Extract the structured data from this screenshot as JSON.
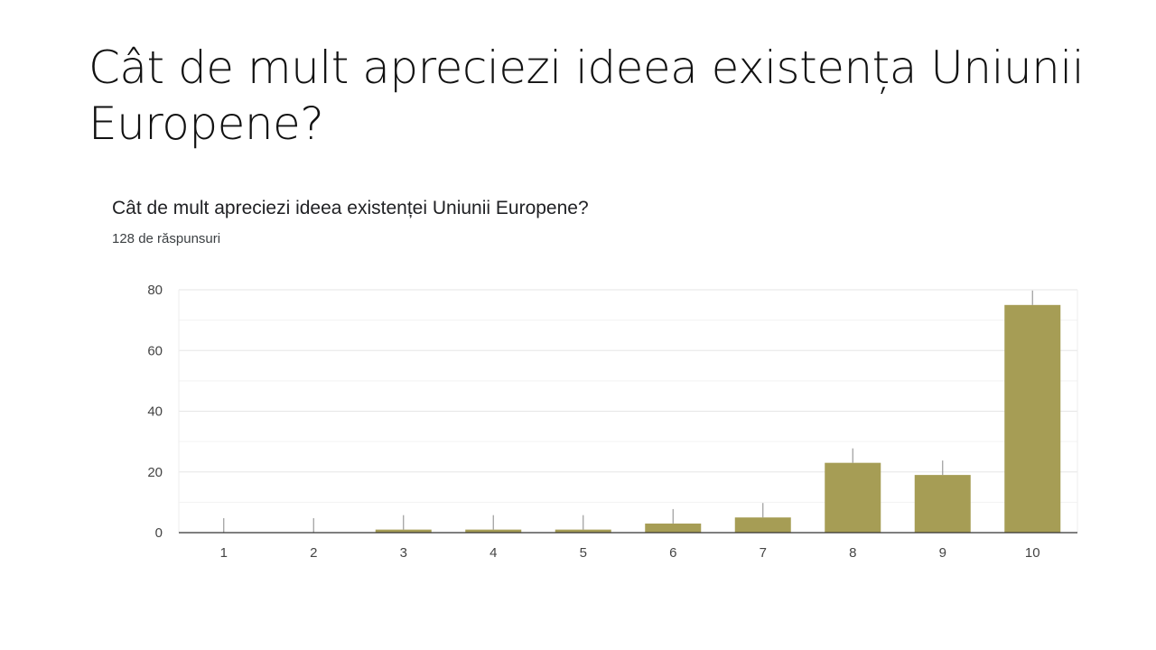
{
  "slide": {
    "title": "Cât de mult apreciezi ideea existența Uniunii Europene?"
  },
  "chart_data": {
    "type": "bar",
    "title": "Cât de mult apreciezi ideea existenței Uniunii Europene?",
    "subtitle": "128 de răspunsuri",
    "categories": [
      "1",
      "2",
      "3",
      "4",
      "5",
      "6",
      "7",
      "8",
      "9",
      "10"
    ],
    "values": [
      0,
      0,
      1,
      1,
      1,
      3,
      5,
      23,
      19,
      75
    ],
    "ylim": [
      0,
      80
    ],
    "yticks": [
      0,
      20,
      40,
      60,
      80
    ],
    "xlabel": "",
    "ylabel": "",
    "grid": true,
    "bar_color": "#a69d55"
  }
}
